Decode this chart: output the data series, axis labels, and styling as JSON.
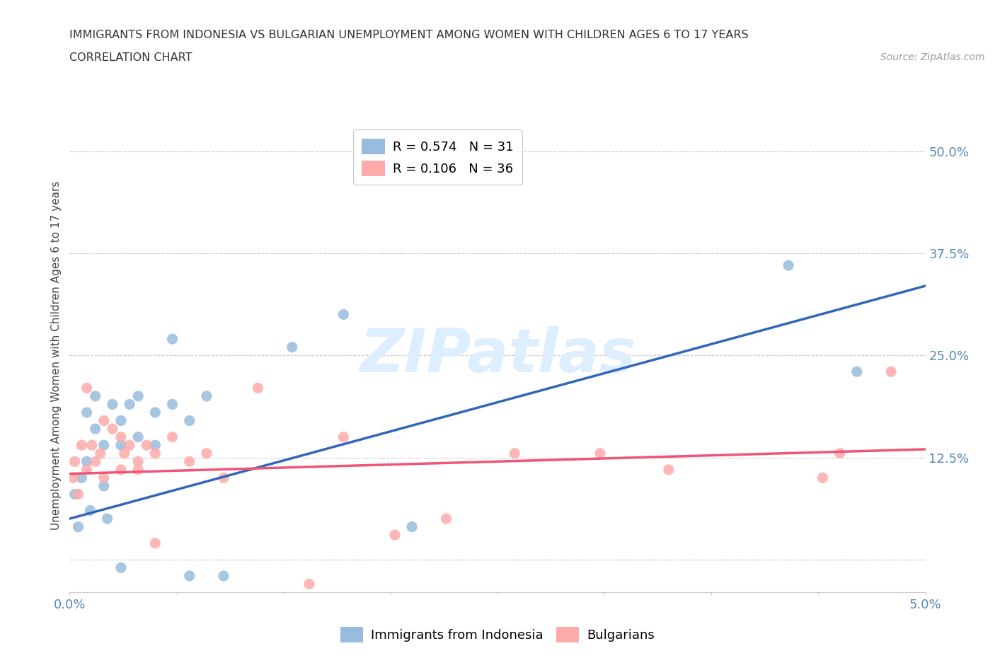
{
  "title_line1": "IMMIGRANTS FROM INDONESIA VS BULGARIAN UNEMPLOYMENT AMONG WOMEN WITH CHILDREN AGES 6 TO 17 YEARS",
  "title_line2": "CORRELATION CHART",
  "source_text": "Source: ZipAtlas.com",
  "ylabel": "Unemployment Among Women with Children Ages 6 to 17 years",
  "xlim": [
    0.0,
    0.05
  ],
  "ylim": [
    -0.04,
    0.54
  ],
  "yticks": [
    0.0,
    0.125,
    0.25,
    0.375,
    0.5
  ],
  "ytick_labels": [
    "",
    "12.5%",
    "25.0%",
    "37.5%",
    "50.0%"
  ],
  "xticks": [
    0.0,
    0.00625,
    0.0125,
    0.01875,
    0.025,
    0.03125,
    0.0375,
    0.04375,
    0.05
  ],
  "xtick_labels": [
    "0.0%",
    "",
    "",
    "",
    "",
    "",
    "",
    "",
    "5.0%"
  ],
  "blue_scatter_x": [
    0.0003,
    0.0005,
    0.0007,
    0.001,
    0.001,
    0.0012,
    0.0015,
    0.0015,
    0.002,
    0.002,
    0.0022,
    0.0025,
    0.003,
    0.003,
    0.003,
    0.0035,
    0.004,
    0.004,
    0.005,
    0.005,
    0.006,
    0.006,
    0.007,
    0.007,
    0.008,
    0.009,
    0.013,
    0.016,
    0.02,
    0.042,
    0.046
  ],
  "blue_scatter_y": [
    0.08,
    0.04,
    0.1,
    0.12,
    0.18,
    0.06,
    0.16,
    0.2,
    0.14,
    0.09,
    0.05,
    0.19,
    0.17,
    0.14,
    -0.01,
    0.19,
    0.15,
    0.2,
    0.14,
    0.18,
    0.19,
    0.27,
    0.17,
    -0.02,
    0.2,
    -0.02,
    0.26,
    0.3,
    0.04,
    0.36,
    0.23
  ],
  "pink_scatter_x": [
    0.0002,
    0.0003,
    0.0005,
    0.0007,
    0.001,
    0.001,
    0.0013,
    0.0015,
    0.0018,
    0.002,
    0.002,
    0.0025,
    0.003,
    0.003,
    0.0032,
    0.0035,
    0.004,
    0.004,
    0.0045,
    0.005,
    0.005,
    0.006,
    0.007,
    0.008,
    0.009,
    0.011,
    0.014,
    0.016,
    0.019,
    0.022,
    0.026,
    0.031,
    0.035,
    0.044,
    0.045,
    0.048
  ],
  "pink_scatter_y": [
    0.1,
    0.12,
    0.08,
    0.14,
    0.11,
    0.21,
    0.14,
    0.12,
    0.13,
    0.1,
    0.17,
    0.16,
    0.15,
    0.11,
    0.13,
    0.14,
    0.12,
    0.11,
    0.14,
    0.13,
    0.02,
    0.15,
    0.12,
    0.13,
    0.1,
    0.21,
    -0.03,
    0.15,
    0.03,
    0.05,
    0.13,
    0.13,
    0.11,
    0.1,
    0.13,
    0.23
  ],
  "blue_R": 0.574,
  "blue_N": 31,
  "pink_R": 0.106,
  "pink_N": 36,
  "blue_line_x": [
    0.0,
    0.05
  ],
  "blue_line_y": [
    0.05,
    0.335
  ],
  "pink_line_x": [
    0.0,
    0.05
  ],
  "pink_line_y": [
    0.105,
    0.135
  ],
  "blue_color": "#99BBDD",
  "pink_color": "#FFAAAA",
  "blue_line_color": "#3366BB",
  "pink_line_color": "#EE5577",
  "grid_color": "#CCCCCC",
  "title_color": "#333333",
  "axis_label_color": "#5588BB",
  "watermark_text": "ZIPatlas",
  "watermark_color": "#DDEEFF",
  "legend_border_color": "#BBBBBB"
}
